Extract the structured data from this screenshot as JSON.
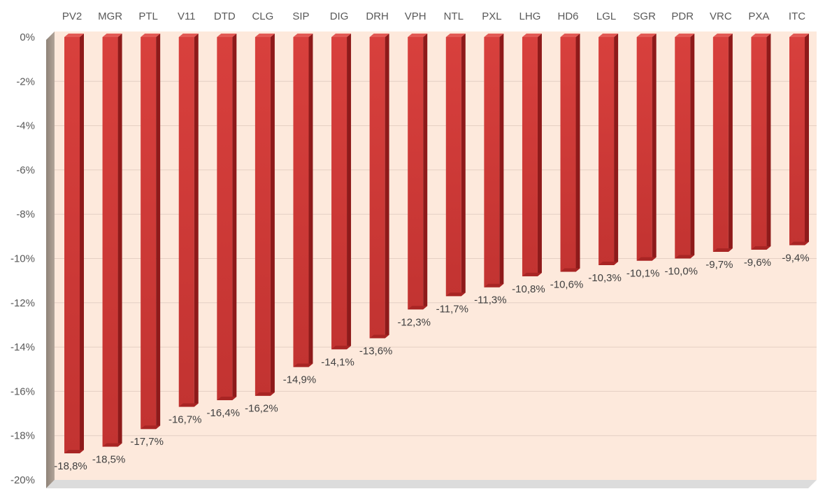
{
  "chart_data": {
    "type": "bar",
    "title": "",
    "xlabel": "",
    "ylabel": "",
    "categories": [
      "PV2",
      "MGR",
      "PTL",
      "V11",
      "DTD",
      "CLG",
      "SIP",
      "DIG",
      "DRH",
      "VPH",
      "NTL",
      "PXL",
      "LHG",
      "HD6",
      "LGL",
      "SGR",
      "PDR",
      "VRC",
      "PXA",
      "ITC"
    ],
    "values": [
      -18.8,
      -18.5,
      -17.7,
      -16.7,
      -16.4,
      -16.2,
      -14.9,
      -14.1,
      -13.6,
      -12.3,
      -11.7,
      -11.3,
      -10.8,
      -10.6,
      -10.3,
      -10.1,
      -10.0,
      -9.7,
      -9.6,
      -9.4
    ],
    "data_labels": [
      "-18,8%",
      "-18,5%",
      "-17,7%",
      "-16,7%",
      "-16,4%",
      "-16,2%",
      "-14,9%",
      "-14,1%",
      "-13,6%",
      "-12,3%",
      "-11,7%",
      "-11,3%",
      "-10,8%",
      "-10,6%",
      "-10,3%",
      "-10,1%",
      "-10,0%",
      "-9,7%",
      "-9,6%",
      "-9,4%"
    ],
    "y_ticks": [
      0,
      -2,
      -4,
      -6,
      -8,
      -10,
      -12,
      -14,
      -16,
      -18,
      -20
    ],
    "y_tick_labels": [
      "0%",
      "-2%",
      "-4%",
      "-6%",
      "-8%",
      "-10%",
      "-12%",
      "-14%",
      "-16%",
      "-18%",
      "-20%"
    ],
    "ylim": [
      -20,
      0
    ],
    "category_axis_position": "top",
    "grid": true,
    "legend": "none",
    "style": "3d-column",
    "colors": {
      "bar_front": "#d03a38",
      "bar_side": "#8e1a1a",
      "bar_top": "#e25a55",
      "plot_background": "#fde9dc",
      "wall_side": "#a29488",
      "floor": "#dcdcdc",
      "gridline": "#e4cfc3"
    }
  }
}
